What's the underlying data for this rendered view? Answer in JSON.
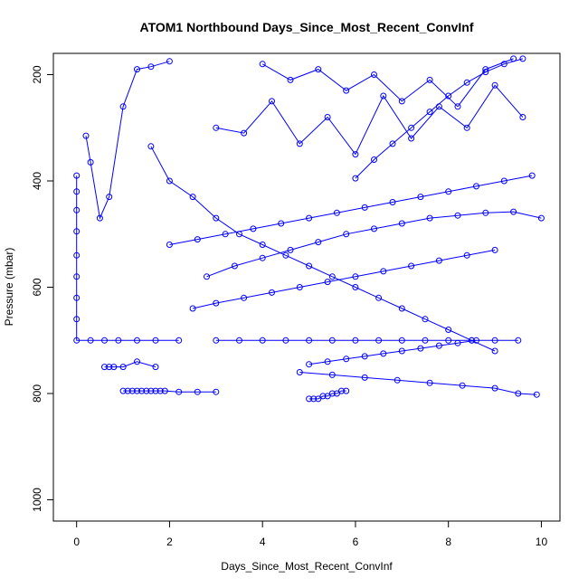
{
  "chart_data": {
    "type": "scatter",
    "title": "ATOM1 Northbound Days_Since_Most_Recent_ConvInf",
    "xlabel": "Days_Since_Most_Recent_ConvInf",
    "ylabel": "Pressure (mbar)",
    "xlim": [
      -0.5,
      10.4
    ],
    "ylim": [
      1040,
      160
    ],
    "y_reversed": true,
    "x_ticks": [
      "0",
      "2",
      "4",
      "6",
      "8",
      "10"
    ],
    "y_ticks": [
      "200",
      "400",
      "600",
      "800",
      "1000"
    ],
    "grid": false,
    "legend": "none",
    "color": "#0000ff",
    "marker": "open-circle",
    "lines_connect_points": true,
    "series": [
      {
        "x": [
          1.0,
          1.1,
          1.2,
          1.3,
          1.4,
          1.5,
          1.6,
          1.7,
          1.8,
          1.9,
          2.2,
          2.6,
          3.0
        ],
        "y": [
          795,
          795,
          795,
          795,
          795,
          795,
          795,
          795,
          795,
          795,
          797,
          797,
          797
        ]
      },
      {
        "x": [
          0.0,
          0.0,
          0.0,
          0.0,
          0.0,
          0.0,
          0.0,
          0.0,
          0.0,
          0.3,
          0.6,
          0.9,
          1.3,
          1.7,
          2.2
        ],
        "y": [
          390,
          420,
          455,
          495,
          540,
          580,
          620,
          660,
          700,
          700,
          700,
          700,
          700,
          700,
          700
        ]
      },
      {
        "x": [
          0.6,
          0.7,
          0.8,
          1.0,
          1.3,
          1.7
        ],
        "y": [
          750,
          750,
          750,
          750,
          740,
          750
        ]
      },
      {
        "x": [
          0.2,
          0.3,
          0.5,
          0.7,
          1.0,
          1.3,
          1.6,
          2.0
        ],
        "y": [
          315,
          365,
          470,
          430,
          260,
          190,
          185,
          175
        ]
      },
      {
        "x": [
          1.6,
          2.0,
          2.5,
          3.0,
          3.5,
          4.0,
          4.5,
          5.0,
          5.5,
          6.0,
          6.5,
          7.0,
          7.5,
          8.0,
          8.5,
          9.0
        ],
        "y": [
          335,
          400,
          430,
          470,
          500,
          520,
          540,
          560,
          580,
          600,
          620,
          640,
          660,
          680,
          700,
          720
        ]
      },
      {
        "x": [
          2.0,
          2.6,
          3.2,
          3.8,
          4.4,
          5.0,
          5.6,
          6.2,
          6.8,
          7.4,
          8.0,
          8.6,
          9.2,
          9.8
        ],
        "y": [
          520,
          510,
          500,
          490,
          480,
          470,
          460,
          450,
          440,
          430,
          420,
          410,
          400,
          390
        ]
      },
      {
        "x": [
          3.0,
          3.5,
          4.0,
          4.5,
          5.0,
          5.5,
          6.0,
          6.5,
          7.0,
          7.5,
          8.0,
          8.5,
          9.0,
          9.5
        ],
        "y": [
          700,
          700,
          700,
          700,
          700,
          700,
          700,
          700,
          700,
          700,
          700,
          700,
          700,
          700
        ]
      },
      {
        "x": [
          5.0,
          5.1,
          5.2,
          5.3,
          5.4,
          5.5,
          5.6,
          5.7,
          5.8
        ],
        "y": [
          810,
          810,
          810,
          805,
          805,
          800,
          800,
          795,
          795
        ]
      },
      {
        "x": [
          4.8,
          5.5,
          6.2,
          6.9,
          7.6,
          8.3,
          9.0,
          9.5,
          9.9
        ],
        "y": [
          760,
          765,
          770,
          775,
          780,
          785,
          790,
          800,
          802
        ]
      },
      {
        "x": [
          2.5,
          3.0,
          3.6,
          4.2,
          4.8,
          5.4,
          6.0,
          6.6,
          7.2,
          7.8,
          8.4,
          9.0
        ],
        "y": [
          640,
          630,
          620,
          610,
          600,
          590,
          580,
          570,
          560,
          550,
          540,
          530
        ]
      },
      {
        "x": [
          3.0,
          3.6,
          4.2,
          4.8,
          5.4,
          6.0,
          6.6,
          7.2,
          7.8,
          8.4,
          9.0,
          9.6
        ],
        "y": [
          300,
          310,
          250,
          330,
          280,
          350,
          240,
          320,
          260,
          300,
          220,
          280
        ]
      },
      {
        "x": [
          4.0,
          4.6,
          5.2,
          5.8,
          6.4,
          7.0,
          7.6,
          8.2,
          8.8,
          9.4
        ],
        "y": [
          180,
          210,
          190,
          230,
          200,
          250,
          210,
          260,
          190,
          170
        ]
      },
      {
        "x": [
          2.8,
          3.4,
          4.0,
          4.6,
          5.2,
          5.8,
          6.4,
          7.0,
          7.6,
          8.2,
          8.8,
          9.4,
          10.0
        ],
        "y": [
          580,
          560,
          545,
          530,
          515,
          500,
          490,
          480,
          470,
          465,
          460,
          458,
          470
        ]
      },
      {
        "x": [
          5.0,
          5.4,
          5.8,
          6.2,
          6.6,
          7.0,
          7.4,
          7.8,
          8.2,
          8.6
        ],
        "y": [
          745,
          740,
          735,
          730,
          725,
          720,
          715,
          710,
          705,
          700
        ]
      },
      {
        "x": [
          6.0,
          6.4,
          6.8,
          7.2,
          7.6,
          8.0,
          8.4,
          8.8,
          9.2,
          9.6
        ],
        "y": [
          395,
          360,
          330,
          300,
          270,
          240,
          215,
          195,
          180,
          170
        ]
      }
    ]
  }
}
